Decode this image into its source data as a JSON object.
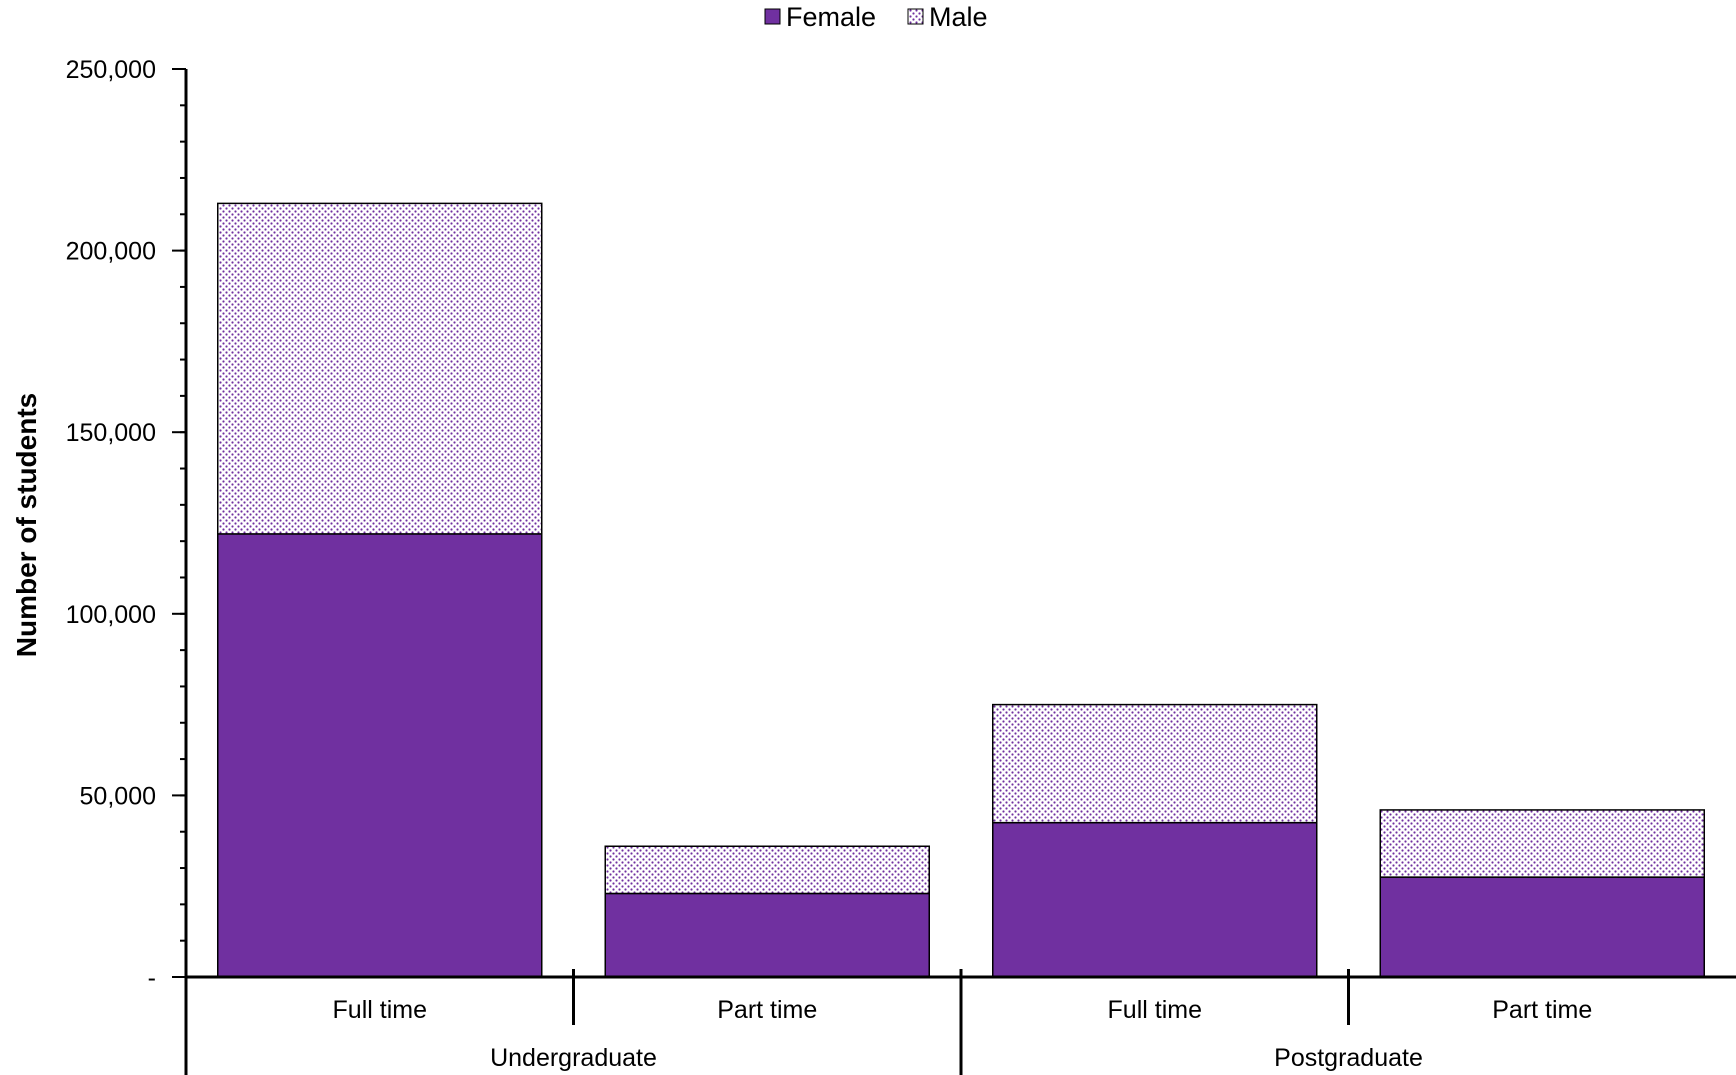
{
  "chart_data": {
    "type": "bar",
    "stacked": true,
    "ylabel": "Number of students",
    "xlabel": "",
    "ylim": [
      0,
      250000
    ],
    "yticks": [
      0,
      50000,
      100000,
      150000,
      200000,
      250000
    ],
    "ytick_labels": [
      "-",
      "50,000",
      "100,000",
      "150,000",
      "200,000",
      "250,000"
    ],
    "ymajor_step": 50000,
    "yminor_step": 10000,
    "categories": [
      "Full time",
      "Part time",
      "Full time",
      "Part time"
    ],
    "groups": [
      {
        "label": "Undergraduate",
        "span": [
          0,
          1
        ]
      },
      {
        "label": "Postgraduate",
        "span": [
          2,
          3
        ]
      }
    ],
    "series": [
      {
        "name": "Female",
        "values": [
          122000,
          23000,
          42500,
          27500
        ],
        "color": "#7030a0",
        "pattern": "solid"
      },
      {
        "name": "Male",
        "values": [
          91000,
          13000,
          32500,
          18500
        ],
        "color": "#7030a0",
        "pattern": "dotted"
      }
    ],
    "legend": {
      "position": "top-center",
      "items": [
        "Female",
        "Male"
      ]
    },
    "grid": false
  }
}
